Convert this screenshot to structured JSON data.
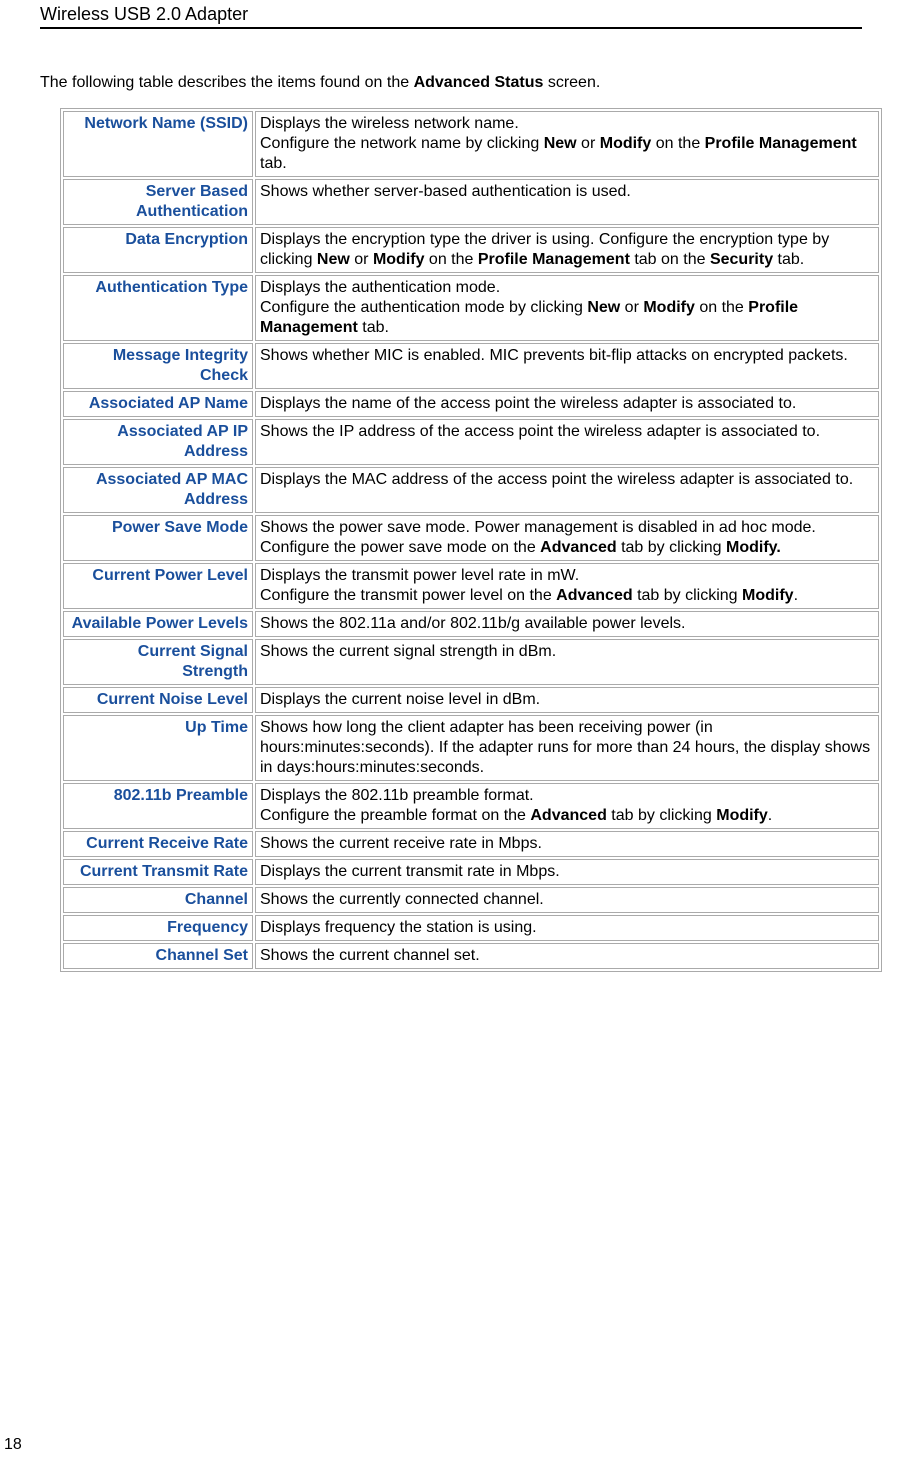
{
  "header_title": "Wireless USB 2.0 Adapter",
  "intro_prefix": "The following table describes the items found on the ",
  "intro_bold": "Advanced Status",
  "intro_suffix": " screen.",
  "page_number": "18",
  "rows": [
    {
      "label": "Network Name (SSID)",
      "desc_parts": [
        {
          "t": "Displays the wireless network name.",
          "br": true
        },
        {
          "t": "Configure the network name by clicking "
        },
        {
          "t": "New",
          "bold": true
        },
        {
          "t": " or "
        },
        {
          "t": "Modify",
          "bold": true
        },
        {
          "t": " on the "
        },
        {
          "t": "Profile Management",
          "bold": true
        },
        {
          "t": " tab."
        }
      ]
    },
    {
      "label": "Server Based Authentication",
      "desc_parts": [
        {
          "t": "Shows whether server-based authentication is used."
        }
      ]
    },
    {
      "label": "Data Encryption",
      "desc_parts": [
        {
          "t": "Displays the encryption type the driver is using. Configure the encryption type by clicking "
        },
        {
          "t": "New",
          "bold": true
        },
        {
          "t": " or "
        },
        {
          "t": "Modify",
          "bold": true
        },
        {
          "t": " on the "
        },
        {
          "t": "Profile Management",
          "bold": true
        },
        {
          "t": " tab on the "
        },
        {
          "t": "Security",
          "bold": true
        },
        {
          "t": " tab."
        }
      ]
    },
    {
      "label": "Authentication Type",
      "desc_parts": [
        {
          "t": "Displays the authentication mode.",
          "br": true
        },
        {
          "t": "Configure the authentication mode by clicking "
        },
        {
          "t": "New",
          "bold": true
        },
        {
          "t": " or "
        },
        {
          "t": "Modify",
          "bold": true
        },
        {
          "t": " on the "
        },
        {
          "t": "Profile Management",
          "bold": true
        },
        {
          "t": " tab."
        }
      ]
    },
    {
      "label": "Message Integrity Check",
      "desc_parts": [
        {
          "t": "Shows whether MIC is enabled. MIC prevents bit-flip attacks on encrypted packets."
        }
      ]
    },
    {
      "label": "Associated AP Name",
      "desc_parts": [
        {
          "t": "Displays the name of the access point the wireless adapter is associated to."
        }
      ]
    },
    {
      "label": "Associated AP IP Address",
      "desc_parts": [
        {
          "t": "Shows the IP address of the access point the wireless adapter is associated to."
        }
      ]
    },
    {
      "label": "Associated AP MAC Address",
      "desc_parts": [
        {
          "t": "Displays the MAC address of the access point the wireless adapter is associated to."
        }
      ]
    },
    {
      "label": "Power Save Mode",
      "desc_parts": [
        {
          "t": "Shows the power save mode. Power management is disabled in ad hoc mode.",
          "br": true
        },
        {
          "t": "Configure the power save mode on the "
        },
        {
          "t": "Advanced",
          "bold": true
        },
        {
          "t": " tab by clicking "
        },
        {
          "t": "Modify.",
          "bold": true
        }
      ]
    },
    {
      "label": "Current Power Level",
      "desc_parts": [
        {
          "t": "Displays the transmit power level rate in mW.",
          "br": true
        },
        {
          "t": "Configure the transmit power level on the "
        },
        {
          "t": "Advanced",
          "bold": true
        },
        {
          "t": " tab by clicking "
        },
        {
          "t": "Modify",
          "bold": true
        },
        {
          "t": "."
        }
      ]
    },
    {
      "label": "Available Power Levels",
      "desc_parts": [
        {
          "t": "Shows the 802.11a and/or 802.11b/g available power levels."
        }
      ]
    },
    {
      "label": "Current Signal Strength",
      "desc_parts": [
        {
          "t": "Shows the current signal strength in dBm."
        }
      ]
    },
    {
      "label": "Current Noise Level",
      "desc_parts": [
        {
          "t": "Displays the current noise level in dBm."
        }
      ]
    },
    {
      "label": "Up Time",
      "desc_parts": [
        {
          "t": "Shows how long the client adapter has been receiving power (in hours:minutes:seconds). If the adapter runs for more than 24 hours, the display shows in days:hours:minutes:seconds."
        }
      ]
    },
    {
      "label": "802.11b Preamble",
      "desc_parts": [
        {
          "t": "Displays the 802.11b preamble format.",
          "br": true
        },
        {
          "t": "Configure the preamble format on the "
        },
        {
          "t": "Advanced",
          "bold": true
        },
        {
          "t": " tab by clicking "
        },
        {
          "t": "Modify",
          "bold": true
        },
        {
          "t": "."
        }
      ]
    },
    {
      "label": "Current Receive Rate",
      "desc_parts": [
        {
          "t": "Shows the current receive rate in Mbps."
        }
      ]
    },
    {
      "label": "Current Transmit Rate",
      "desc_parts": [
        {
          "t": "Displays the current transmit rate in Mbps."
        }
      ]
    },
    {
      "label": "Channel",
      "desc_parts": [
        {
          "t": "Shows the currently connected channel."
        }
      ]
    },
    {
      "label": "Frequency",
      "desc_parts": [
        {
          "t": "Displays frequency the station is using."
        }
      ]
    },
    {
      "label": "Channel Set",
      "desc_parts": [
        {
          "t": "Shows the current channel set."
        }
      ]
    }
  ]
}
